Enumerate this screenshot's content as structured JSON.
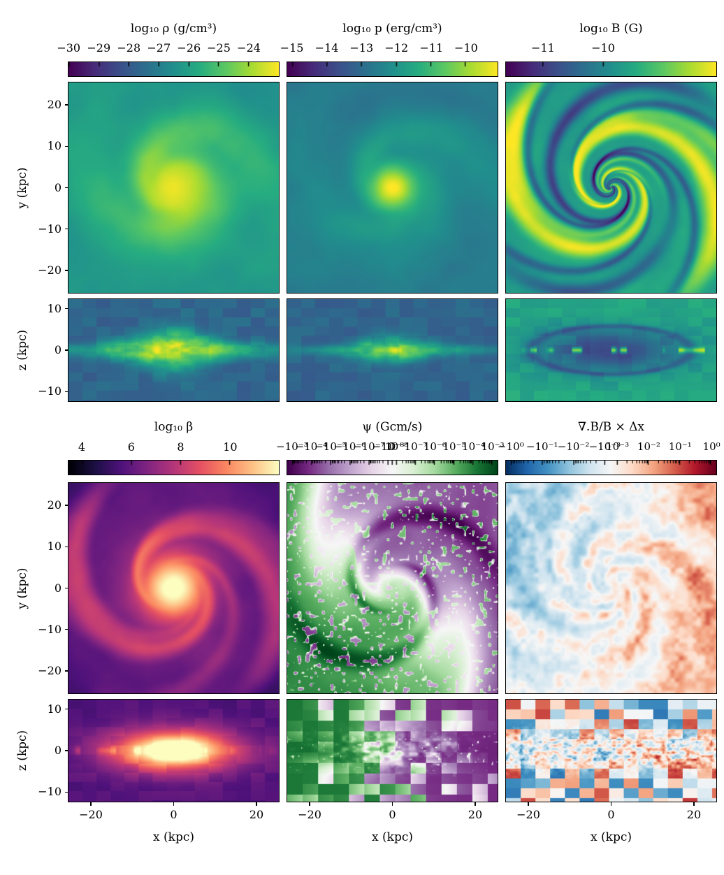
{
  "figure": {
    "background": "#ffffff",
    "text_color": "#000000",
    "x_axis": {
      "label": "x (kpc)",
      "ticks": [
        "−20",
        "0",
        "20"
      ],
      "tick_values": [
        -20,
        0,
        20
      ]
    },
    "y_axis": {
      "label": "y (kpc)",
      "ticks": [
        "20",
        "10",
        "0",
        "−10",
        "−20"
      ],
      "tick_values": [
        20,
        10,
        0,
        -10,
        -20
      ]
    },
    "z_axis": {
      "label": "z (kpc)",
      "ticks": [
        "10",
        "0",
        "−10"
      ],
      "tick_values": [
        10,
        0,
        -10
      ]
    },
    "groups": [
      {
        "show_x_axis": false,
        "columns": [
          {
            "id": "density",
            "colorbar": {
              "title": "log₁₀ ρ (g/cm³)",
              "colormap": "viridis",
              "labels": [
                "−30",
                "−29",
                "−28",
                "−27",
                "−26",
                "−25",
                "−24"
              ],
              "fractions": [
                0.004,
                0.146,
                0.288,
                0.43,
                0.572,
                0.713,
                0.855
              ]
            }
          },
          {
            "id": "pressure",
            "colorbar": {
              "title": "log₁₀ p (erg/cm³)",
              "colormap": "viridis",
              "labels": [
                "−15",
                "−14",
                "−13",
                "−12",
                "−11",
                "−10"
              ],
              "fractions": [
                0.025,
                0.19,
                0.354,
                0.519,
                0.684,
                0.848
              ]
            }
          },
          {
            "id": "bfield",
            "colorbar": {
              "title": "log₁₀ B (G)",
              "colormap": "viridis",
              "labels": [
                "−11",
                "−10"
              ],
              "fractions": [
                0.178,
                0.462
              ]
            }
          }
        ]
      },
      {
        "show_x_axis": true,
        "columns": [
          {
            "id": "beta",
            "colorbar": {
              "title": "log₁₀ β",
              "colormap": "magma",
              "labels": [
                "4",
                "6",
                "8",
                "10"
              ],
              "fractions": [
                0.066,
                0.3,
                0.533,
                0.767
              ]
            }
          },
          {
            "id": "psi",
            "colorbar": {
              "title": "ψ (Gcm/s)",
              "colormap": "prgn",
              "small_labels": true,
              "labels": [
                "−10⁻³",
                "−10⁻⁴",
                "−10⁻⁵",
                "−10⁻⁶",
                "−10⁻⁷",
                "−10⁻⁸",
                "0",
                "10⁻⁸",
                "10⁻⁷",
                "10⁻⁶",
                "10⁻⁵",
                "10⁻⁴",
                "10⁻³"
              ],
              "fractions": [
                0.026,
                0.117,
                0.208,
                0.299,
                0.389,
                0.48,
                0.5,
                0.52,
                0.611,
                0.701,
                0.792,
                0.883,
                0.974
              ],
              "minor": {
                "neg_intervals": [
                  0,
                  1,
                  2,
                  3,
                  4
                ],
                "skip_intervals": [
                  5,
                  6
                ]
              }
            }
          },
          {
            "id": "divb",
            "colorbar": {
              "title": "∇.B/B × Δx",
              "colormap": "rdbu",
              "small_labels": true,
              "labels": [
                "−10⁰",
                "−10⁻¹",
                "−10⁻²",
                "−10⁻³",
                "10⁻³",
                "10⁻²",
                "10⁻¹",
                "10⁰"
              ],
              "fractions": [
                0.026,
                0.174,
                0.322,
                0.47,
                0.53,
                0.678,
                0.826,
                0.974
              ],
              "minor": {
                "neg_intervals": [
                  0,
                  1,
                  2
                ],
                "skip_intervals": [
                  3
                ]
              }
            }
          }
        ]
      }
    ]
  },
  "chart_data": [
    {
      "type": "heatmap",
      "quantity": "gas density",
      "title": "log₁₀ ρ (g/cm³)",
      "colormap": "viridis",
      "scale": "log10",
      "colorbar_ticks": [
        -30,
        -29,
        -28,
        -27,
        -26,
        -25,
        -24
      ],
      "colorbar_range": [
        -30.0,
        -23.0
      ],
      "panels": [
        {
          "plane": "x-y face-on",
          "x_range_kpc": [
            -25.6,
            25.6
          ],
          "y_range_kpc": [
            -25.6,
            25.6
          ],
          "features": "spiral galaxy disc; bright yellow core near -24.5 at centre, flocculent yellow-green arms near -25.5, teal-green background near -26.5"
        },
        {
          "plane": "x-z edge-on",
          "x_range_kpc": [
            -25.6,
            25.6
          ],
          "z_range_kpc": [
            -12.5,
            12.5
          ],
          "features": "thin bright yellow-green midplane strip fading with |x|; dark blue blocky halo"
        }
      ]
    },
    {
      "type": "heatmap",
      "quantity": "gas pressure",
      "title": "log₁₀ p (erg/cm³)",
      "colormap": "viridis",
      "scale": "log10",
      "colorbar_ticks": [
        -15,
        -14,
        -13,
        -12,
        -11,
        -10
      ],
      "colorbar_range": [
        -15.2,
        -9.1
      ],
      "panels": [
        {
          "plane": "x-y face-on",
          "x_range_kpc": [
            -25.6,
            25.6
          ],
          "y_range_kpc": [
            -25.6,
            25.6
          ],
          "features": "compact bright yellow centre, green-teal disc with faint spiral arms, darker teal edges"
        },
        {
          "plane": "x-z edge-on",
          "x_range_kpc": [
            -25.6,
            25.6
          ],
          "z_range_kpc": [
            -12.5,
            12.5
          ],
          "features": "narrow bright midplane with small yellow core at x=0; dark blue halo"
        }
      ]
    },
    {
      "type": "heatmap",
      "quantity": "magnetic field strength",
      "title": "log₁₀ B (G)",
      "colormap": "viridis",
      "scale": "log10",
      "colorbar_ticks": [
        -11,
        -10
      ],
      "colorbar_range": [
        -11.6,
        -8.1
      ],
      "panels": [
        {
          "plane": "x-y face-on",
          "x_range_kpc": [
            -25.6,
            25.6
          ],
          "y_range_kpc": [
            -25.6,
            25.6
          ],
          "features": "green disc threaded by sharp bright-yellow spiral filaments and thin dark-blue interarm lanes, tightly wound spiral at centre"
        },
        {
          "plane": "x-z edge-on",
          "x_range_kpc": [
            -25.6,
            25.6
          ],
          "z_range_kpc": [
            -12.5,
            12.5
          ],
          "features": "green halo, dark lens-shaped magnetised inner region with bright yellow knots along the midplane"
        }
      ]
    },
    {
      "type": "heatmap",
      "quantity": "plasma beta",
      "title": "log₁₀ β",
      "colormap": "magma",
      "scale": "log10",
      "colorbar_ticks": [
        4,
        6,
        8,
        10
      ],
      "colorbar_range": [
        3.4,
        12.0
      ],
      "panels": [
        {
          "plane": "x-y face-on",
          "x_range_kpc": [
            -25.6,
            25.6
          ],
          "y_range_kpc": [
            -25.6,
            25.6
          ],
          "features": "white-hot centre, orange-pink spiral ridges on purple disc, near-black corners"
        },
        {
          "plane": "x-z edge-on",
          "x_range_kpc": [
            -25.6,
            25.6
          ],
          "z_range_kpc": [
            -12.5,
            12.5
          ],
          "features": "broad bright white-orange inner bulge along the midplane, purple blocky background"
        }
      ]
    },
    {
      "type": "heatmap",
      "quantity": "psi (divergence-cleaning scalar)",
      "title": "ψ (Gcm/s)",
      "colormap": "PRGn (purple negative, green positive)",
      "scale": "symlog",
      "colorbar_ticks": [
        -0.001,
        -0.0001,
        -1e-05,
        -1e-06,
        -1e-07,
        -1e-08,
        0,
        1e-08,
        1e-07,
        1e-06,
        1e-05,
        0.0001,
        0.001
      ],
      "colorbar_range": [
        -0.001,
        0.001
      ],
      "panels": [
        {
          "plane": "x-y face-on",
          "x_range_kpc": [
            -25.6,
            25.6
          ],
          "y_range_kpc": [
            -25.6,
            25.6
          ],
          "features": "dipolar pattern: green (positive) left half, purple (negative) right half, twisted spiral interface with strong small-scale speckle noise"
        },
        {
          "plane": "x-z edge-on",
          "x_range_kpc": [
            -25.6,
            25.6
          ],
          "z_range_kpc": [
            -12.5,
            12.5
          ],
          "features": "coarse green/purple block mosaic, finer mixed structure and light speckles in the midplane"
        }
      ]
    },
    {
      "type": "heatmap",
      "quantity": "normalized magnetic divergence",
      "title": "∇.B/B × Δx",
      "colormap": "RdBu reversed (blue negative, red positive)",
      "scale": "symlog",
      "colorbar_ticks": [
        -1,
        -0.1,
        -0.01,
        -0.001,
        0.001,
        0.01,
        0.1,
        1
      ],
      "colorbar_range": [
        -1,
        1
      ],
      "panels": [
        {
          "plane": "x-y face-on",
          "x_range_kpc": [
            -25.6,
            25.6
          ],
          "y_range_kpc": [
            -25.6,
            25.6
          ],
          "features": "swirling alternating red/blue spiral filaments on near-white background; blue tinge on left side, strong red region upper-right and right edge"
        },
        {
          "plane": "x-z edge-on",
          "x_range_kpc": [
            -25.6,
            25.6
          ],
          "z_range_kpc": [
            -12.5,
            12.5
          ],
          "features": "random coarse red/blue block mosaic with finer whitish mixed structure along the midplane"
        }
      ]
    }
  ]
}
